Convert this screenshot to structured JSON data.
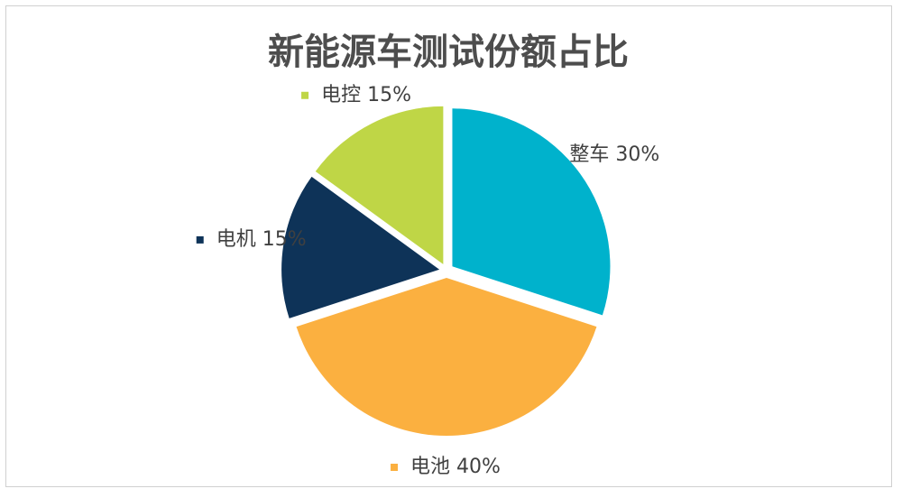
{
  "chart_data": {
    "type": "pie",
    "title": "新能源车测试份额占比",
    "categories": [
      "整车",
      "电池",
      "电机",
      "电控"
    ],
    "values": [
      30,
      40,
      15,
      15
    ],
    "value_labels": [
      "30%",
      "40%",
      "15%",
      "15%"
    ],
    "colors": [
      "#00b2cc",
      "#fbb040",
      "#0e3358",
      "#bfd646"
    ]
  }
}
